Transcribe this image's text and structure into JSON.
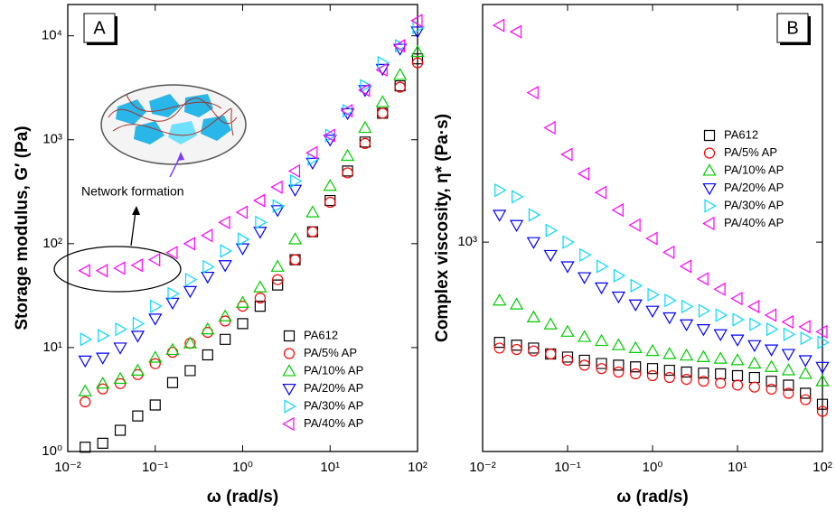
{
  "chart_data": [
    {
      "type": "scatter",
      "panel_label": "A",
      "x_label": "ω (rad/s)",
      "y_label": "Storage modulus, G′ (Pa)",
      "annotation": "Network formation",
      "log_x": true,
      "log_y": true,
      "legend": "lower right",
      "xlim": [
        0.01,
        100
      ],
      "ylim": [
        1,
        20000
      ],
      "xticks": [
        {
          "value": 0.01,
          "label": "10⁻²"
        },
        {
          "value": 0.1,
          "label": "10⁻¹"
        },
        {
          "value": 1,
          "label": "10⁰"
        },
        {
          "value": 10,
          "label": "10¹"
        },
        {
          "value": 100,
          "label": "10²"
        }
      ],
      "yticks": [
        {
          "value": 1,
          "label": "10⁰"
        },
        {
          "value": 10,
          "label": "10¹"
        },
        {
          "value": 100,
          "label": "10²"
        },
        {
          "value": 1000,
          "label": "10³"
        },
        {
          "value": 10000,
          "label": "10⁴"
        }
      ],
      "x": [
        0.0158,
        0.0251,
        0.0398,
        0.0631,
        0.1,
        0.158,
        0.251,
        0.398,
        0.631,
        1,
        1.585,
        2.51,
        3.98,
        6.31,
        10,
        15.85,
        25.1,
        39.8,
        63.1,
        100
      ],
      "series": [
        {
          "name": "PA612",
          "color": "#000000",
          "marker": "square",
          "values": [
            1.1,
            1.2,
            1.6,
            2.2,
            2.8,
            4.6,
            6,
            8.5,
            12,
            17,
            25,
            40,
            70,
            130,
            260,
            500,
            950,
            1800,
            3300,
            6000
          ]
        },
        {
          "name": "PA/5% AP",
          "color": "#ff0000",
          "marker": "circle",
          "values": [
            3,
            4,
            4.5,
            5.5,
            7,
            9,
            11,
            14,
            18,
            25,
            30,
            45,
            70,
            130,
            250,
            480,
            920,
            1800,
            3200,
            5500
          ]
        },
        {
          "name": "PA/10% AP",
          "color": "#00cc00",
          "marker": "triangle-up",
          "values": [
            3.8,
            4.5,
            5,
            6,
            8,
            9.5,
            11,
            15,
            20,
            27,
            38,
            60,
            110,
            200,
            360,
            700,
            1300,
            2300,
            4200,
            7000
          ]
        },
        {
          "name": "PA/20% AP",
          "color": "#0000ff",
          "marker": "triangle-down",
          "values": [
            7.5,
            8,
            10,
            13,
            19,
            27,
            35,
            48,
            62,
            90,
            130,
            210,
            330,
            600,
            1000,
            1800,
            3000,
            4800,
            7500,
            11000
          ]
        },
        {
          "name": "PA/30% AP",
          "color": "#00d8ff",
          "marker": "triangle-right",
          "values": [
            12,
            13,
            15,
            17,
            25,
            33,
            45,
            60,
            85,
            110,
            160,
            230,
            400,
            650,
            1100,
            1900,
            3300,
            5500,
            8000,
            12000
          ]
        },
        {
          "name": "PA/40% AP",
          "color": "#ff00ff",
          "marker": "triangle-left",
          "values": [
            55,
            55,
            58,
            62,
            70,
            82,
            100,
            120,
            160,
            200,
            260,
            350,
            500,
            750,
            1100,
            1900,
            3000,
            4700,
            8000,
            14000
          ]
        }
      ]
    },
    {
      "type": "scatter",
      "panel_label": "B",
      "x_label": "ω (rad/s)",
      "y_label": "Complex viscosity, η* (Pa·s)",
      "log_x": true,
      "log_y": true,
      "legend": "upper right",
      "xlim": [
        0.01,
        100
      ],
      "ylim": [
        180,
        7000
      ],
      "xticks": [
        {
          "value": 0.01,
          "label": "10⁻²"
        },
        {
          "value": 0.1,
          "label": "10⁻¹"
        },
        {
          "value": 1,
          "label": "10⁰"
        },
        {
          "value": 10,
          "label": "10¹"
        },
        {
          "value": 100,
          "label": "10²"
        }
      ],
      "yticks": [
        {
          "value": 1000,
          "label": "10³"
        }
      ],
      "x": [
        0.0158,
        0.0251,
        0.0398,
        0.0631,
        0.1,
        0.158,
        0.251,
        0.398,
        0.631,
        1,
        1.585,
        2.51,
        3.98,
        6.31,
        10,
        15.85,
        25.1,
        39.8,
        63.1,
        100
      ],
      "series": [
        {
          "name": "PA612",
          "color": "#000000",
          "marker": "square",
          "values": [
            440,
            430,
            420,
            400,
            390,
            380,
            370,
            365,
            360,
            355,
            350,
            345,
            342,
            340,
            335,
            330,
            320,
            310,
            290,
            265
          ]
        },
        {
          "name": "PA/5% AP",
          "color": "#ff0000",
          "marker": "circle",
          "values": [
            420,
            415,
            410,
            400,
            380,
            365,
            355,
            345,
            340,
            335,
            330,
            325,
            320,
            315,
            310,
            305,
            300,
            290,
            275,
            250
          ]
        },
        {
          "name": "PA/10% AP",
          "color": "#00cc00",
          "marker": "triangle-up",
          "values": [
            620,
            600,
            540,
            510,
            480,
            460,
            445,
            430,
            420,
            410,
            400,
            395,
            390,
            385,
            380,
            370,
            360,
            350,
            340,
            320
          ]
        },
        {
          "name": "PA/20% AP",
          "color": "#0000ff",
          "marker": "triangle-down",
          "values": [
            1250,
            1150,
            1000,
            900,
            820,
            750,
            690,
            640,
            600,
            570,
            540,
            510,
            490,
            470,
            450,
            430,
            415,
            400,
            380,
            360
          ]
        },
        {
          "name": "PA/30% AP",
          "color": "#00d8ff",
          "marker": "triangle-right",
          "values": [
            1530,
            1450,
            1250,
            1100,
            1000,
            900,
            820,
            760,
            700,
            650,
            620,
            590,
            570,
            550,
            530,
            510,
            490,
            470,
            455,
            440
          ]
        },
        {
          "name": "PA/40% AP",
          "color": "#ff00ff",
          "marker": "triangle-left",
          "values": [
            5900,
            5600,
            3400,
            2550,
            2050,
            1750,
            1500,
            1300,
            1150,
            1030,
            920,
            820,
            740,
            680,
            630,
            590,
            550,
            520,
            500,
            480
          ]
        }
      ]
    }
  ]
}
